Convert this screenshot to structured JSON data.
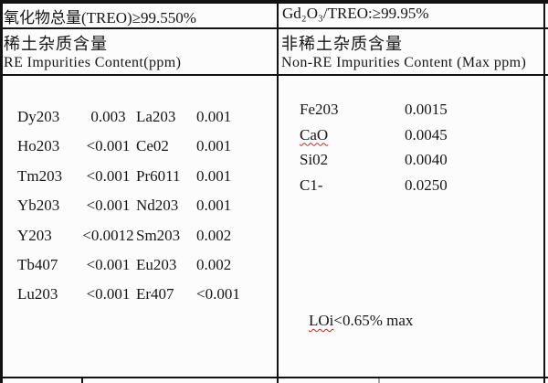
{
  "header": {
    "treo_total": "氧化物总量(TREO)≥99.550%",
    "gd_purity": "Gd₂O₃/TREO:≥99.95%",
    "re_section_cn": "稀土杂质含量",
    "re_section_en": "RE Impurities Content(ppm)",
    "non_re_section_cn": "非稀土杂质含量",
    "non_re_section_en": "Non-RE Impurities Content (Max ppm)"
  },
  "re_impurities": {
    "rows": [
      {
        "name1": "Dy203",
        "value1": "0.003",
        "name2": "La203",
        "value2": "0.001"
      },
      {
        "name1": "Ho203",
        "value1": "<0.001",
        "name2": "Ce02",
        "value2": "0.001"
      },
      {
        "name1": "Tm203",
        "value1": "<0.001",
        "name2": "Pr6011",
        "value2": "0.001"
      },
      {
        "name1": "Yb203",
        "value1": "<0.001",
        "name2": "Nd203",
        "value2": "0.001"
      },
      {
        "name1": "Y203",
        "value1": "<0.0012",
        "name2": "Sm203",
        "value2": "0.002"
      },
      {
        "name1": "Tb407",
        "value1": "<0.001",
        "name2": "Eu203",
        "value2": "0.002"
      },
      {
        "name1": "Lu203",
        "value1": "<0.001",
        "name2": "Er407",
        "value2": "<0.001"
      }
    ]
  },
  "non_re_impurities": {
    "rows": [
      {
        "name": "Fe203",
        "value": "0.0015",
        "squiggle": false
      },
      {
        "name": "CaO",
        "value": "0.0045",
        "squiggle": true
      },
      {
        "name": "Si02",
        "value": "0.0040",
        "squiggle": false
      },
      {
        "name": "C1-",
        "value": "0.0250",
        "squiggle": false
      }
    ],
    "loi_word": "LOi",
    "loi_rest": "<0.65% max"
  },
  "colors": {
    "border": "#121212",
    "text": "#161616",
    "squiggle": "#c62828",
    "background": "#fcfcfc"
  }
}
